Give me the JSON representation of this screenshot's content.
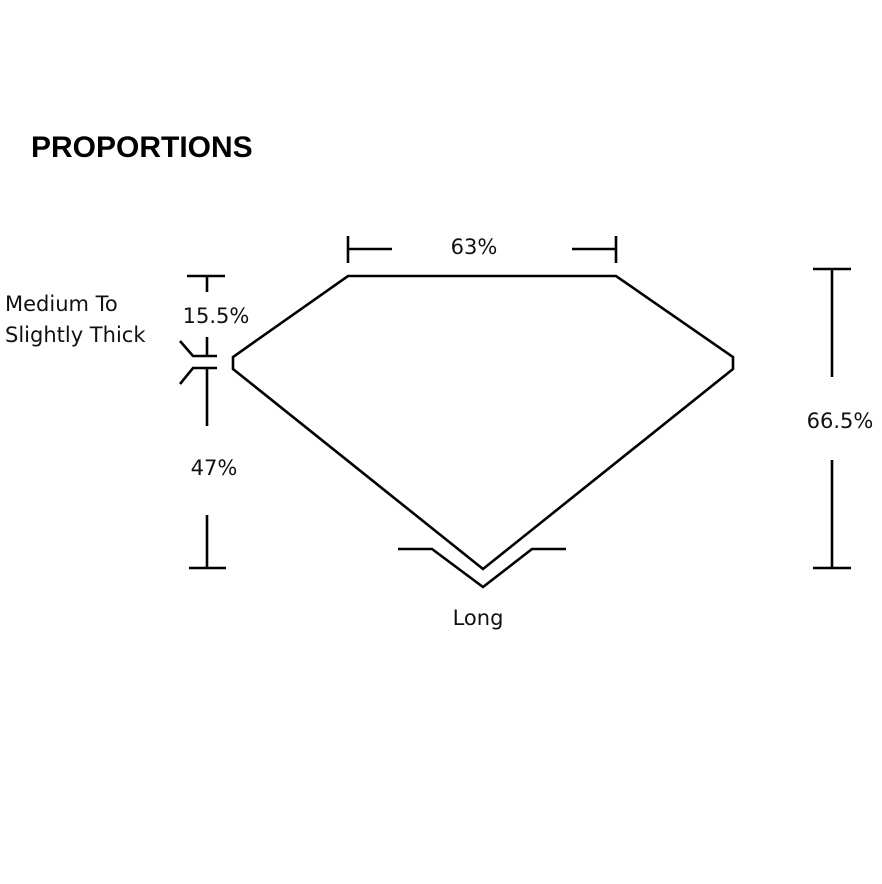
{
  "title": "PROPORTIONS",
  "labels": {
    "table": "63%",
    "crown": "15.5%",
    "girdle_line1": "Medium To",
    "girdle_line2": "Slightly Thick",
    "pavilion": "47%",
    "total_depth": "66.5%",
    "culet": "Long"
  }
}
